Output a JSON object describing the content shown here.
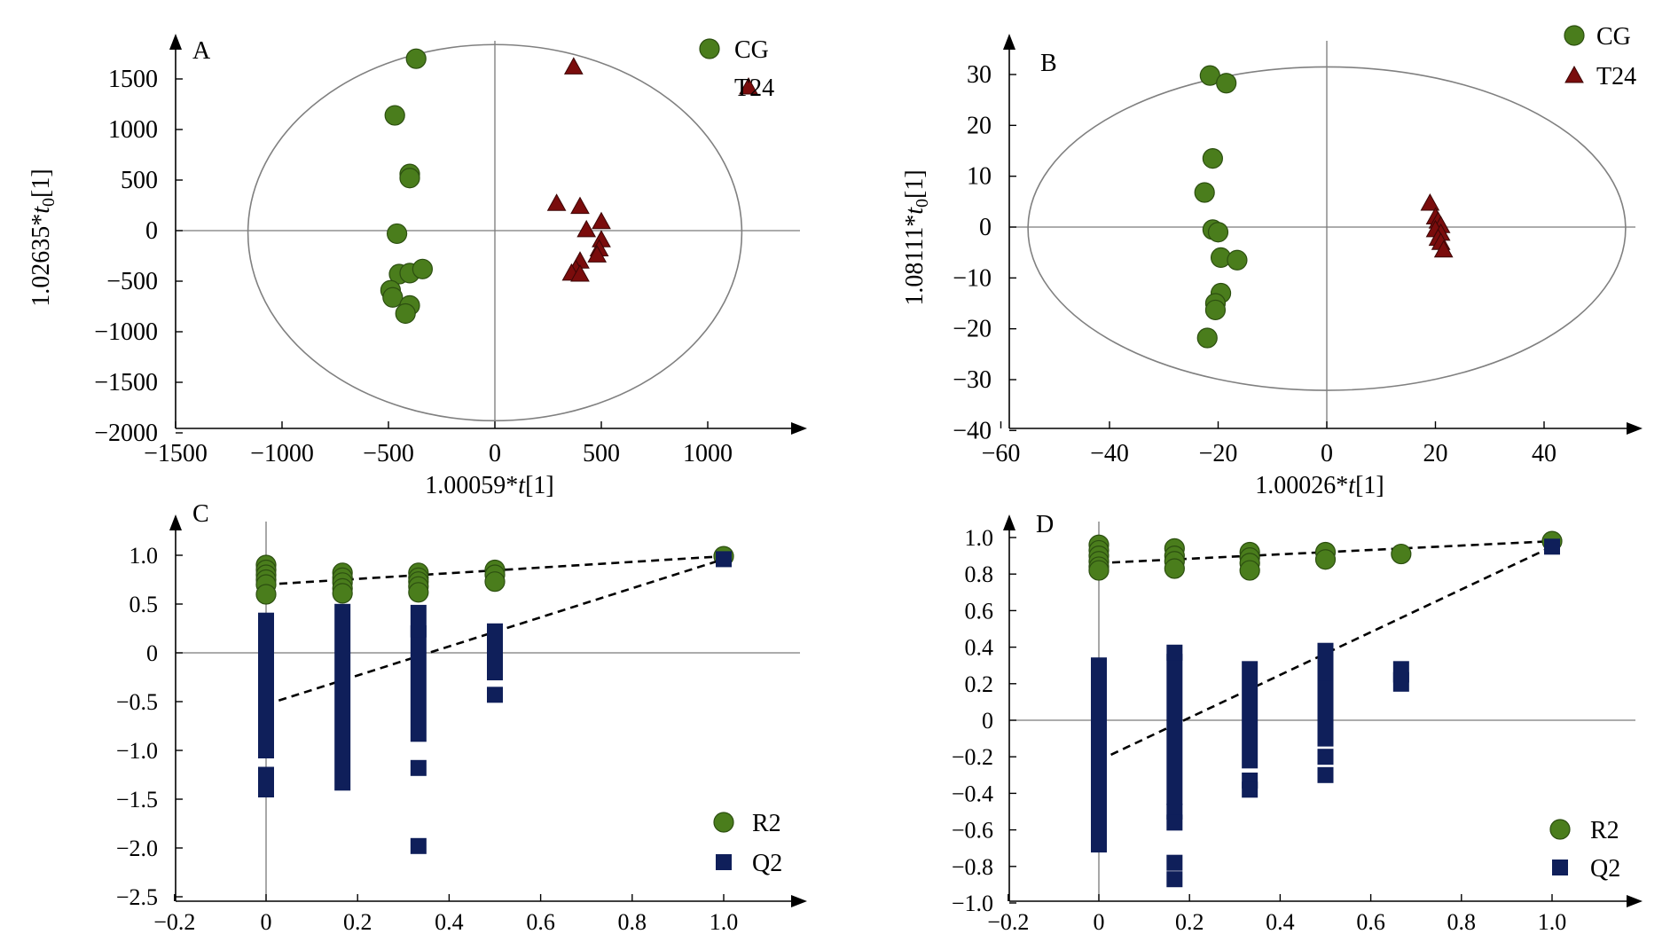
{
  "chart_data": [
    {
      "panel": "A",
      "type": "scatter",
      "xlabel_parts": [
        "1.00059*",
        "t",
        "[1]"
      ],
      "ylabel_parts": [
        "1.02635*",
        "t",
        "0",
        "[1]"
      ],
      "xlim": [
        -1500,
        1500
      ],
      "ylim": [
        -2000,
        2000
      ],
      "xticks": [
        -1500,
        -1000,
        -500,
        0,
        500,
        1000
      ],
      "yticks": [
        -2000,
        -1500,
        -1000,
        -500,
        0,
        500,
        1000,
        1500
      ],
      "ellipse": {
        "cx": 0,
        "cy": -20,
        "rx": 1160,
        "ry": 1860
      },
      "legend_position": "top-right",
      "series": [
        {
          "name": "CG",
          "marker": "circle",
          "color": "#4a7d1c",
          "points": [
            [
              -370,
              1700
            ],
            [
              -470,
              1140
            ],
            [
              -400,
              560
            ],
            [
              -400,
              520
            ],
            [
              -460,
              -30
            ],
            [
              -450,
              -430
            ],
            [
              -400,
              -420
            ],
            [
              -340,
              -380
            ],
            [
              -490,
              -590
            ],
            [
              -480,
              -660
            ],
            [
              -400,
              -740
            ],
            [
              -420,
              -820
            ]
          ]
        },
        {
          "name": "T24",
          "marker": "triangle",
          "color": "#7a0c0c",
          "points": [
            [
              370,
              1620
            ],
            [
              290,
              270
            ],
            [
              400,
              240
            ],
            [
              500,
              90
            ],
            [
              430,
              10
            ],
            [
              500,
              -90
            ],
            [
              490,
              -180
            ],
            [
              480,
              -240
            ],
            [
              400,
              -300
            ],
            [
              380,
              -380
            ],
            [
              360,
              -420
            ],
            [
              400,
              -430
            ]
          ]
        }
      ]
    },
    {
      "panel": "B",
      "type": "scatter",
      "xlabel_parts": [
        "1.00026*",
        "t",
        "[1]"
      ],
      "ylabel_parts": [
        "1.08111*",
        "t",
        "0",
        "[1]"
      ],
      "xlim": [
        -60,
        60
      ],
      "ylim": [
        -40,
        36
      ],
      "xticks": [
        -60,
        -40,
        -20,
        0,
        20,
        40
      ],
      "yticks": [
        -40,
        -30,
        -20,
        -10,
        0,
        10,
        20,
        30
      ],
      "ellipse": {
        "cx": 0,
        "cy": -0.3,
        "rx": 55,
        "ry": 31.8
      },
      "legend_position": "top-right",
      "series": [
        {
          "name": "CG",
          "marker": "circle",
          "color": "#4a7d1c",
          "points": [
            [
              -21.5,
              29.8
            ],
            [
              -18.5,
              28.3
            ],
            [
              -21,
              13.5
            ],
            [
              -22.5,
              6.8
            ],
            [
              -21,
              -0.5
            ],
            [
              -20,
              -1
            ],
            [
              -19.5,
              -6
            ],
            [
              -16.5,
              -6.5
            ],
            [
              -19.5,
              -13
            ],
            [
              -20.5,
              -15
            ],
            [
              -20.5,
              -16.3
            ],
            [
              -22,
              -21.8
            ]
          ]
        },
        {
          "name": "T24",
          "marker": "triangle",
          "color": "#7a0c0c",
          "points": [
            [
              19,
              4.7
            ],
            [
              20,
              2
            ],
            [
              20.5,
              1.2
            ],
            [
              21,
              0.3
            ],
            [
              20,
              -0.5
            ],
            [
              21,
              -1.2
            ],
            [
              20.5,
              -2.2
            ],
            [
              21,
              -3
            ],
            [
              21.5,
              -4.5
            ]
          ]
        }
      ]
    },
    {
      "panel": "C",
      "type": "scatter",
      "xlim": [
        -0.2,
        1.2
      ],
      "ylim": [
        -2.5,
        1.4
      ],
      "xticks": [
        -0.2,
        0,
        0.2,
        0.4,
        0.6,
        0.8,
        1.0
      ],
      "yticks": [
        -2.5,
        -2.0,
        -1.5,
        -1.0,
        -0.5,
        0,
        0.5,
        1.0
      ],
      "legend_position": "bottom-right",
      "series": [
        {
          "name": "R2",
          "marker": "circle",
          "color": "#4a7d1c",
          "points": [
            [
              0,
              0.9
            ],
            [
              0,
              0.85
            ],
            [
              0,
              0.8
            ],
            [
              0,
              0.75
            ],
            [
              0,
              0.7
            ],
            [
              0,
              0.6
            ],
            [
              0.167,
              0.82
            ],
            [
              0.167,
              0.77
            ],
            [
              0.167,
              0.72
            ],
            [
              0.167,
              0.66
            ],
            [
              0.167,
              0.61
            ],
            [
              0.333,
              0.82
            ],
            [
              0.333,
              0.77
            ],
            [
              0.333,
              0.73
            ],
            [
              0.333,
              0.68
            ],
            [
              0.333,
              0.62
            ],
            [
              0.5,
              0.85
            ],
            [
              0.5,
              0.8
            ],
            [
              0.5,
              0.73
            ],
            [
              1.0,
              0.99
            ]
          ],
          "trend": [
            [
              0,
              0.7
            ],
            [
              1.0,
              0.99
            ]
          ]
        },
        {
          "name": "Q2",
          "marker": "square",
          "color": "#0f1f5a",
          "segments": [
            {
              "x": 0,
              "from": -1.0,
              "to": 0.33
            },
            {
              "x": 0.167,
              "from": -1.33,
              "to": 0.42
            },
            {
              "x": 0.333,
              "from": -0.83,
              "to": 0.2
            },
            {
              "x": 0.333,
              "from": 0.24,
              "to": 0.41
            },
            {
              "x": 0.5,
              "from": -0.2,
              "to": 0.22
            }
          ],
          "points": [
            [
              0,
              -1.25
            ],
            [
              0,
              -1.4
            ],
            [
              0.333,
              -1.18
            ],
            [
              0.333,
              -1.98
            ],
            [
              0.5,
              -0.43
            ],
            [
              1.0,
              0.96
            ]
          ],
          "trend": [
            [
              0,
              -0.53
            ],
            [
              1.0,
              0.96
            ]
          ]
        }
      ]
    },
    {
      "panel": "D",
      "type": "scatter",
      "xlim": [
        -0.2,
        1.2
      ],
      "ylim": [
        -1.0,
        1.1
      ],
      "xticks": [
        -0.2,
        0,
        0.2,
        0.4,
        0.6,
        0.8,
        1.0
      ],
      "yticks": [
        -1.0,
        -0.8,
        -0.6,
        -0.4,
        -0.2,
        0,
        0.2,
        0.4,
        0.6,
        0.8,
        1.0
      ],
      "legend_position": "bottom-right",
      "series": [
        {
          "name": "R2",
          "marker": "circle",
          "color": "#4a7d1c",
          "points": [
            [
              0,
              0.96
            ],
            [
              0,
              0.93
            ],
            [
              0,
              0.9
            ],
            [
              0,
              0.87
            ],
            [
              0,
              0.84
            ],
            [
              0,
              0.82
            ],
            [
              0.167,
              0.94
            ],
            [
              0.167,
              0.9
            ],
            [
              0.167,
              0.87
            ],
            [
              0.167,
              0.83
            ],
            [
              0.333,
              0.92
            ],
            [
              0.333,
              0.89
            ],
            [
              0.333,
              0.86
            ],
            [
              0.333,
              0.82
            ],
            [
              0.5,
              0.92
            ],
            [
              0.5,
              0.88
            ],
            [
              0.667,
              0.91
            ],
            [
              1.0,
              0.98
            ]
          ],
          "trend": [
            [
              0,
              0.86
            ],
            [
              1.0,
              0.98
            ]
          ]
        },
        {
          "name": "Q2",
          "marker": "square",
          "color": "#0f1f5a",
          "segments": [
            {
              "x": 0,
              "from": -0.68,
              "to": 0.3
            },
            {
              "x": 0.167,
              "from": -0.42,
              "to": 0.32
            },
            {
              "x": 0.333,
              "from": -0.22,
              "to": 0.28
            },
            {
              "x": 0.5,
              "from": -0.1,
              "to": 0.22
            },
            {
              "x": 0.5,
              "from": 0.26,
              "to": 0.38
            },
            {
              "x": 0.667,
              "from": 0.2,
              "to": 0.22
            },
            {
              "x": 0.667,
              "from": 0.25,
              "to": 0.28
            }
          ],
          "points": [
            [
              0.167,
              0.37
            ],
            [
              0.167,
              -0.5
            ],
            [
              0.167,
              -0.56
            ],
            [
              0.167,
              -0.78
            ],
            [
              0.167,
              -0.87
            ],
            [
              0.333,
              -0.33
            ],
            [
              0.333,
              -0.38
            ],
            [
              0.5,
              -0.2
            ],
            [
              0.5,
              -0.3
            ],
            [
              1.0,
              0.95
            ]
          ],
          "trend": [
            [
              0,
              -0.22
            ],
            [
              1.0,
              0.95
            ]
          ]
        }
      ]
    }
  ]
}
